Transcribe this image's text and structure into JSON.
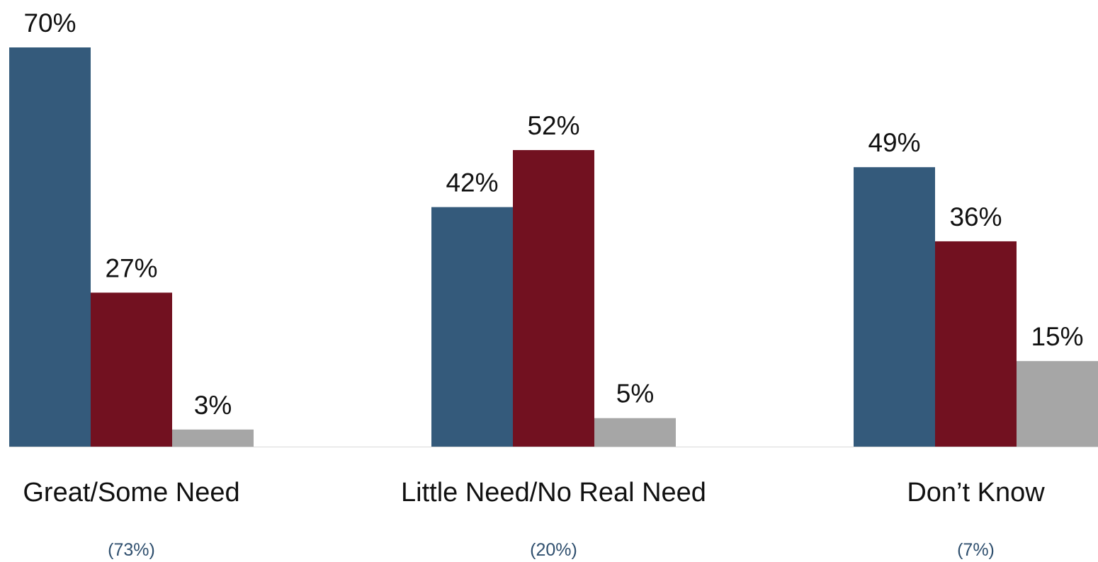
{
  "chart_data": {
    "type": "bar",
    "categories": [
      "Great/Some Need",
      "Little Need/No Real Need",
      "Don’t Know"
    ],
    "category_shares": [
      "(73%)",
      "(20%)",
      "(7%)"
    ],
    "series": [
      {
        "values": [
          70,
          42,
          49
        ],
        "labels": [
          "70%",
          "42%",
          "49%"
        ]
      },
      {
        "values": [
          27,
          52,
          36
        ],
        "labels": [
          "27%",
          "52%",
          "36%"
        ]
      },
      {
        "values": [
          3,
          5,
          15
        ],
        "labels": [
          "3%",
          "5%",
          "15%"
        ]
      }
    ],
    "ylim": [
      0,
      70
    ],
    "grid": false,
    "legend": "none"
  },
  "colors": {
    "series": [
      "#345A7B",
      "#721120",
      "#A6A6A6"
    ],
    "axis_line": "#D9D9D9",
    "category_text": "#111111",
    "share_text": "#2F4F6E"
  }
}
